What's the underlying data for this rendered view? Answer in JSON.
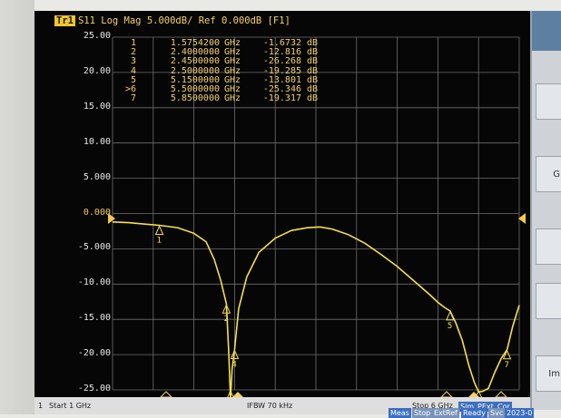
{
  "trace": {
    "badge": "Tr1",
    "label": "S11 Log Mag 5.000dB/ Ref 0.000dB [F1]"
  },
  "markers": [
    {
      "idx": "1",
      "freq": "1.5754200",
      "unit": "GHz",
      "value": "-1.6732",
      "db": "dB",
      "active": false
    },
    {
      "idx": "2",
      "freq": "2.4000000",
      "unit": "GHz",
      "value": "-12.816",
      "db": "dB",
      "active": false
    },
    {
      "idx": "3",
      "freq": "2.4500000",
      "unit": "GHz",
      "value": "-26.268",
      "db": "dB",
      "active": false
    },
    {
      "idx": "4",
      "freq": "2.5000000",
      "unit": "GHz",
      "value": "-19.285",
      "db": "dB",
      "active": false
    },
    {
      "idx": "5",
      "freq": "5.1500000",
      "unit": "GHz",
      "value": "-13.801",
      "db": "dB",
      "active": false
    },
    {
      "idx": ">6",
      "freq": "5.5000000",
      "unit": "GHz",
      "value": "-25.346",
      "db": "dB",
      "active": true
    },
    {
      "idx": "7",
      "freq": "5.8500000",
      "unit": "GHz",
      "value": "-19.317",
      "db": "dB",
      "active": false
    }
  ],
  "y_ticks": [
    "25.00",
    "20.00",
    "15.00",
    "10.00",
    "5.000",
    "0.000",
    "-5.000",
    "-10.00",
    "-15.00",
    "-20.00",
    "-25.00"
  ],
  "footer": {
    "channel": "1",
    "start": "Start 1 GHz",
    "ifbw": "IFBW 70 kHz",
    "stop": "Stop 6 GHz",
    "tags": [
      "Sim",
      "PExt",
      "Cor"
    ],
    "status": [
      "Meas",
      "Stop",
      "ExtRef",
      "Ready",
      "Svc",
      "2023-0"
    ]
  },
  "side_panel": {
    "items": [
      "",
      "G",
      "",
      "",
      "Im"
    ]
  },
  "chart_data": {
    "type": "line",
    "title": "S11 Log Mag 5.000dB/ Ref 0.000dB [F1]",
    "xlabel": "",
    "ylabel": "",
    "xlim": [
      1,
      6
    ],
    "ylim": [
      -25,
      25
    ],
    "x_unit": "GHz",
    "grid": true,
    "series": [
      {
        "x": [
          1.0,
          1.2,
          1.4,
          1.5754,
          1.8,
          2.0,
          2.15,
          2.25,
          2.33,
          2.4,
          2.43,
          2.45,
          2.47,
          2.5,
          2.55,
          2.65,
          2.8,
          3.0,
          3.2,
          3.4,
          3.55,
          3.7,
          3.9,
          4.1,
          4.3,
          4.5,
          4.7,
          4.9,
          5.0,
          5.08,
          5.15,
          5.22,
          5.3,
          5.38,
          5.45,
          5.5,
          5.55,
          5.62,
          5.7,
          5.78,
          5.85,
          5.92,
          6.0
        ],
        "y": [
          -1.2,
          -1.3,
          -1.5,
          -1.67,
          -2.0,
          -2.8,
          -4.0,
          -6.5,
          -9.5,
          -12.8,
          -20.0,
          -26.3,
          -22.0,
          -19.3,
          -13.5,
          -9.0,
          -5.5,
          -3.5,
          -2.4,
          -2.0,
          -1.9,
          -2.2,
          -3.0,
          -4.2,
          -5.8,
          -7.5,
          -9.5,
          -11.5,
          -12.6,
          -13.3,
          -13.8,
          -15.5,
          -18.0,
          -21.5,
          -24.0,
          -25.3,
          -25.2,
          -24.8,
          -22.5,
          -20.5,
          -19.3,
          -16.0,
          -13.0
        ]
      }
    ],
    "markers": [
      {
        "id": "1",
        "x": 1.5754,
        "y": -1.6732
      },
      {
        "id": "2",
        "x": 2.4,
        "y": -12.816
      },
      {
        "id": "3",
        "x": 2.45,
        "y": -26.268
      },
      {
        "id": "4",
        "x": 2.5,
        "y": -19.285
      },
      {
        "id": "5",
        "x": 5.15,
        "y": -13.801
      },
      {
        "id": "6",
        "x": 5.5,
        "y": -25.346
      },
      {
        "id": "7",
        "x": 5.85,
        "y": -19.317
      }
    ],
    "colors": {
      "trace": "#f5e04a",
      "grid": "#6f6f6f",
      "marker_text": "#f2d26b"
    }
  }
}
